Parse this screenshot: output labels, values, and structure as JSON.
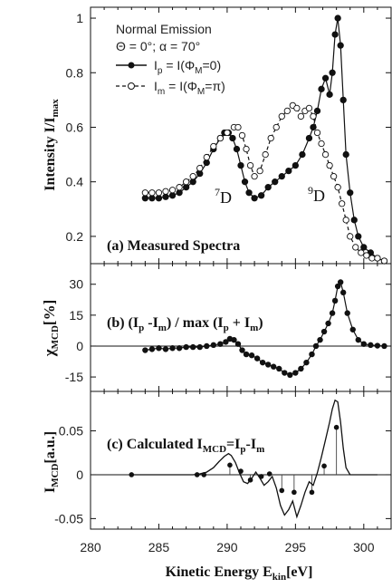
{
  "chart_data": [
    {
      "type": "scatter",
      "panel_label": "(a) Measured Spectra",
      "ylabel": "Intensity  I/I",
      "ylabel_sub": "max",
      "xlim": [
        280,
        302
      ],
      "ylim": [
        0.1,
        1.04
      ],
      "yticks": [
        0.2,
        0.4,
        0.6,
        0.8,
        1.0
      ],
      "legend": {
        "line1": "Normal Emission",
        "line2": "Θ = 0°;   α = 70°",
        "filled_label": "I",
        "filled_sub": "p",
        "filled_rest": " = I(Φ",
        "filled_sub2": "M",
        "filled_end": "=0)",
        "open_label": "I",
        "open_sub": "m",
        "open_rest": " = I(Φ",
        "open_sub2": "M",
        "open_end": "=π)"
      },
      "annotations": [
        {
          "text": "7",
          "rest": "D",
          "x": 290.5,
          "y": 0.275
        },
        {
          "text": "9",
          "rest": "D",
          "x": 296.8,
          "y": 0.29
        }
      ],
      "series": [
        {
          "name": "Ip = I(ΦM=0)",
          "marker": "filled",
          "x": [
            284.0,
            284.5,
            285.0,
            285.5,
            286.0,
            286.5,
            287.0,
            287.5,
            288.0,
            288.5,
            289.0,
            289.5,
            289.8,
            290.1,
            290.4,
            290.7,
            291.0,
            291.3,
            291.6,
            292.0,
            292.5,
            293.0,
            293.5,
            294.0,
            294.5,
            295.0,
            295.5,
            296.0,
            296.3,
            296.6,
            296.9,
            297.2,
            297.5,
            297.7,
            297.9,
            298.1,
            298.3,
            298.5,
            298.7,
            299.0,
            299.3,
            299.6,
            300.0,
            300.5,
            301.0,
            301.5
          ],
          "y": [
            0.34,
            0.34,
            0.34,
            0.345,
            0.35,
            0.36,
            0.38,
            0.4,
            0.43,
            0.47,
            0.52,
            0.56,
            0.58,
            0.58,
            0.56,
            0.52,
            0.46,
            0.4,
            0.36,
            0.34,
            0.35,
            0.38,
            0.4,
            0.42,
            0.44,
            0.46,
            0.5,
            0.56,
            0.6,
            0.66,
            0.74,
            0.78,
            0.72,
            0.8,
            0.94,
            1.0,
            0.9,
            0.7,
            0.5,
            0.36,
            0.26,
            0.2,
            0.16,
            0.14,
            0.12,
            0.11
          ]
        },
        {
          "name": "Im = I(ΦM=π)",
          "marker": "open",
          "x": [
            284.0,
            284.5,
            285.0,
            285.5,
            286.0,
            286.5,
            287.0,
            287.5,
            288.0,
            288.5,
            289.0,
            289.5,
            290.0,
            290.5,
            290.8,
            291.1,
            291.4,
            291.7,
            292.0,
            292.4,
            292.8,
            293.2,
            293.6,
            294.0,
            294.4,
            294.8,
            295.1,
            295.4,
            295.7,
            296.0,
            296.3,
            296.6,
            296.9,
            297.2,
            297.5,
            297.8,
            298.1,
            298.4,
            298.7,
            299.0,
            299.4,
            299.8,
            300.2,
            300.6,
            301.0,
            301.5
          ],
          "y": [
            0.36,
            0.36,
            0.36,
            0.365,
            0.37,
            0.38,
            0.4,
            0.42,
            0.45,
            0.49,
            0.53,
            0.56,
            0.58,
            0.6,
            0.6,
            0.57,
            0.52,
            0.46,
            0.42,
            0.44,
            0.5,
            0.56,
            0.6,
            0.64,
            0.66,
            0.68,
            0.67,
            0.64,
            0.66,
            0.67,
            0.64,
            0.58,
            0.54,
            0.5,
            0.46,
            0.42,
            0.38,
            0.32,
            0.26,
            0.2,
            0.16,
            0.14,
            0.13,
            0.12,
            0.12,
            0.11
          ]
        }
      ]
    },
    {
      "type": "scatter",
      "panel_label_main": "(b) (I",
      "panel_label_p": "p",
      "panel_label_mid": " -I",
      "panel_label_m": "m",
      "panel_label_mid2": ") / max (I",
      "panel_label_p2": "p",
      "panel_label_mid3": " + I",
      "panel_label_m2": "m",
      "panel_label_end": ")",
      "ylabel": "χ",
      "ylabel_sub": "MCD",
      "ylabel_rest": "[%]",
      "xlim": [
        280,
        302
      ],
      "ylim": [
        -22,
        40
      ],
      "yticks": [
        -15,
        0,
        15,
        30
      ],
      "zero_line": true,
      "series": [
        {
          "name": "χMCD",
          "marker": "filled",
          "x": [
            284.0,
            284.5,
            285.0,
            285.5,
            286.0,
            286.5,
            287.0,
            287.5,
            288.0,
            288.5,
            289.0,
            289.5,
            289.9,
            290.2,
            290.5,
            290.8,
            291.1,
            291.4,
            291.8,
            292.2,
            292.6,
            293.0,
            293.4,
            293.8,
            294.2,
            294.6,
            295.0,
            295.4,
            295.8,
            296.2,
            296.5,
            296.8,
            297.1,
            297.4,
            297.7,
            297.9,
            298.1,
            298.3,
            298.5,
            298.8,
            299.2,
            299.6,
            300.0,
            300.5,
            301.0,
            301.5
          ],
          "y": [
            -2,
            -1.5,
            -1,
            -1.5,
            -1,
            -1,
            -0.5,
            -0.5,
            -0.5,
            0,
            0.5,
            1,
            2,
            3.5,
            3,
            1,
            -2,
            -4,
            -4.5,
            -6,
            -8,
            -9,
            -10,
            -11,
            -13,
            -14,
            -13,
            -11,
            -8,
            -4,
            0,
            3,
            7,
            11,
            16,
            22,
            29,
            31,
            26,
            16,
            8,
            3,
            1,
            0.5,
            0.2,
            0
          ]
        }
      ]
    },
    {
      "type": "line",
      "panel_label_main": "(c) Calculated I",
      "panel_label_sub": "MCD",
      "panel_label_mid": "=I",
      "panel_label_p": "p",
      "panel_label_mid2": "-I",
      "panel_label_m": "m",
      "ylabel": "I",
      "ylabel_sub": "MCD",
      "ylabel_rest": "[a.u.]",
      "xlabel": "Kinetic Energy  E",
      "xlabel_sub": "kin",
      "xlabel_rest": "[eV]",
      "xlim": [
        280,
        302
      ],
      "ylim": [
        -0.062,
        0.095
      ],
      "yticks": [
        -0.05,
        0,
        0.05
      ],
      "xticks": [
        280,
        285,
        290,
        295,
        300
      ],
      "zero_line": true,
      "curve": {
        "x": [
          283.0,
          284.0,
          285.0,
          286.0,
          287.0,
          287.5,
          288.0,
          288.5,
          289.0,
          289.4,
          289.8,
          290.1,
          290.3,
          290.6,
          290.9,
          291.2,
          291.5,
          291.8,
          292.1,
          292.4,
          292.7,
          293.0,
          293.3,
          293.6,
          293.9,
          294.2,
          294.5,
          294.8,
          295.1,
          295.4,
          295.7,
          296.0,
          296.3,
          296.6,
          296.9,
          297.2,
          297.5,
          297.7,
          297.9,
          298.1,
          298.3,
          298.5,
          298.7,
          299.0,
          299.5,
          300.0,
          301.0
        ],
        "y": [
          0,
          0,
          0,
          0,
          0,
          0,
          0.001,
          0.003,
          0.008,
          0.015,
          0.021,
          0.024,
          0.022,
          0.014,
          0.002,
          -0.008,
          -0.01,
          -0.004,
          0.003,
          -0.004,
          -0.012,
          -0.008,
          -0.002,
          -0.015,
          -0.035,
          -0.046,
          -0.04,
          -0.03,
          -0.048,
          -0.035,
          -0.02,
          -0.008,
          -0.012,
          0.002,
          0.02,
          0.04,
          0.06,
          0.075,
          0.085,
          0.083,
          0.06,
          0.03,
          0.008,
          0,
          0,
          0,
          0
        ]
      },
      "stems": {
        "x": [
          283.0,
          287.8,
          288.3,
          290.2,
          291.0,
          291.7,
          292.5,
          293.1,
          294.0,
          294.9,
          296.2,
          297.1,
          298.0
        ],
        "y": [
          0,
          0,
          0,
          0.011,
          0.004,
          -0.006,
          -0.002,
          0.001,
          -0.018,
          -0.02,
          -0.02,
          0.01,
          0.054
        ]
      }
    }
  ]
}
